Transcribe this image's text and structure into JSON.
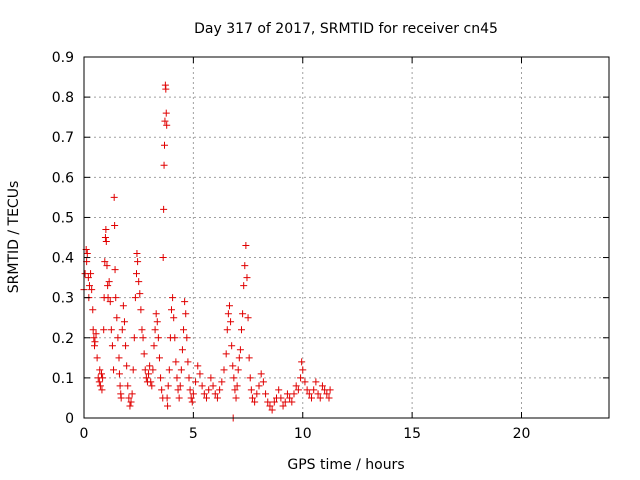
{
  "chart_data": {
    "type": "scatter",
    "title": "Day 317 of 2017, SRMTID for receiver cn45",
    "xlabel": "GPS time / hours",
    "ylabel": "SRMTID / TECUs",
    "xlim": [
      0,
      24
    ],
    "ylim": [
      0,
      0.9
    ],
    "xticks": [
      "0",
      "5",
      "10",
      "15",
      "20"
    ],
    "yticks": [
      "0",
      "0.1",
      "0.2",
      "0.3",
      "0.4",
      "0.5",
      "0.6",
      "0.7",
      "0.8",
      "0.9"
    ],
    "grid": true,
    "marker": "+",
    "color": "#e00000",
    "series": [
      {
        "points": [
          [
            0.0,
            0.32
          ],
          [
            0.05,
            0.36
          ],
          [
            0.1,
            0.42
          ],
          [
            0.12,
            0.39
          ],
          [
            0.15,
            0.41
          ],
          [
            0.2,
            0.35
          ],
          [
            0.22,
            0.3
          ],
          [
            0.25,
            0.33
          ],
          [
            0.3,
            0.36
          ],
          [
            0.35,
            0.32
          ],
          [
            0.4,
            0.27
          ],
          [
            0.42,
            0.22
          ],
          [
            0.45,
            0.2
          ],
          [
            0.48,
            0.18
          ],
          [
            0.5,
            0.19
          ],
          [
            0.55,
            0.21
          ],
          [
            0.6,
            0.15
          ],
          [
            0.65,
            0.1
          ],
          [
            0.7,
            0.09
          ],
          [
            0.72,
            0.12
          ],
          [
            0.75,
            0.08
          ],
          [
            0.8,
            0.11
          ],
          [
            0.82,
            0.07
          ],
          [
            0.85,
            0.1
          ],
          [
            0.9,
            0.22
          ],
          [
            0.92,
            0.3
          ],
          [
            0.95,
            0.39
          ],
          [
            0.98,
            0.45
          ],
          [
            1.0,
            0.47
          ],
          [
            1.02,
            0.44
          ],
          [
            1.05,
            0.38
          ],
          [
            1.08,
            0.33
          ],
          [
            1.1,
            0.3
          ],
          [
            1.15,
            0.34
          ],
          [
            1.2,
            0.29
          ],
          [
            1.25,
            0.22
          ],
          [
            1.3,
            0.18
          ],
          [
            1.35,
            0.12
          ],
          [
            1.38,
            0.55
          ],
          [
            1.4,
            0.48
          ],
          [
            1.42,
            0.37
          ],
          [
            1.45,
            0.3
          ],
          [
            1.5,
            0.25
          ],
          [
            1.55,
            0.2
          ],
          [
            1.6,
            0.15
          ],
          [
            1.62,
            0.11
          ],
          [
            1.65,
            0.08
          ],
          [
            1.68,
            0.06
          ],
          [
            1.7,
            0.05
          ],
          [
            1.75,
            0.22
          ],
          [
            1.8,
            0.28
          ],
          [
            1.85,
            0.24
          ],
          [
            1.9,
            0.18
          ],
          [
            1.95,
            0.13
          ],
          [
            2.0,
            0.08
          ],
          [
            2.05,
            0.05
          ],
          [
            2.1,
            0.03
          ],
          [
            2.15,
            0.04
          ],
          [
            2.2,
            0.06
          ],
          [
            2.25,
            0.12
          ],
          [
            2.3,
            0.2
          ],
          [
            2.35,
            0.3
          ],
          [
            2.4,
            0.36
          ],
          [
            2.42,
            0.41
          ],
          [
            2.45,
            0.39
          ],
          [
            2.5,
            0.34
          ],
          [
            2.55,
            0.31
          ],
          [
            2.6,
            0.27
          ],
          [
            2.65,
            0.22
          ],
          [
            2.7,
            0.2
          ],
          [
            2.75,
            0.16
          ],
          [
            2.8,
            0.12
          ],
          [
            2.85,
            0.1
          ],
          [
            2.9,
            0.09
          ],
          [
            2.95,
            0.11
          ],
          [
            3.0,
            0.13
          ],
          [
            3.05,
            0.09
          ],
          [
            3.1,
            0.08
          ],
          [
            3.15,
            0.12
          ],
          [
            3.2,
            0.18
          ],
          [
            3.25,
            0.22
          ],
          [
            3.3,
            0.26
          ],
          [
            3.35,
            0.24
          ],
          [
            3.4,
            0.2
          ],
          [
            3.45,
            0.15
          ],
          [
            3.5,
            0.1
          ],
          [
            3.55,
            0.07
          ],
          [
            3.6,
            0.05
          ],
          [
            3.62,
            0.4
          ],
          [
            3.64,
            0.52
          ],
          [
            3.66,
            0.63
          ],
          [
            3.68,
            0.68
          ],
          [
            3.7,
            0.74
          ],
          [
            3.72,
            0.83
          ],
          [
            3.74,
            0.82
          ],
          [
            3.76,
            0.76
          ],
          [
            3.78,
            0.73
          ],
          [
            3.8,
            0.05
          ],
          [
            3.82,
            0.03
          ],
          [
            3.85,
            0.08
          ],
          [
            3.9,
            0.12
          ],
          [
            3.95,
            0.2
          ],
          [
            4.0,
            0.27
          ],
          [
            4.05,
            0.3
          ],
          [
            4.1,
            0.25
          ],
          [
            4.15,
            0.2
          ],
          [
            4.2,
            0.14
          ],
          [
            4.25,
            0.1
          ],
          [
            4.3,
            0.07
          ],
          [
            4.35,
            0.05
          ],
          [
            4.4,
            0.08
          ],
          [
            4.45,
            0.12
          ],
          [
            4.5,
            0.17
          ],
          [
            4.55,
            0.22
          ],
          [
            4.6,
            0.29
          ],
          [
            4.65,
            0.26
          ],
          [
            4.7,
            0.2
          ],
          [
            4.75,
            0.14
          ],
          [
            4.8,
            0.1
          ],
          [
            4.85,
            0.07
          ],
          [
            4.9,
            0.05
          ],
          [
            4.95,
            0.04
          ],
          [
            5.0,
            0.06
          ],
          [
            5.1,
            0.09
          ],
          [
            5.2,
            0.13
          ],
          [
            5.3,
            0.11
          ],
          [
            5.4,
            0.08
          ],
          [
            5.5,
            0.06
          ],
          [
            5.6,
            0.05
          ],
          [
            5.7,
            0.07
          ],
          [
            5.8,
            0.1
          ],
          [
            5.9,
            0.08
          ],
          [
            6.0,
            0.06
          ],
          [
            6.1,
            0.05
          ],
          [
            6.2,
            0.07
          ],
          [
            6.3,
            0.09
          ],
          [
            6.4,
            0.12
          ],
          [
            6.5,
            0.16
          ],
          [
            6.55,
            0.22
          ],
          [
            6.6,
            0.26
          ],
          [
            6.65,
            0.28
          ],
          [
            6.7,
            0.24
          ],
          [
            6.75,
            0.18
          ],
          [
            6.8,
            0.13
          ],
          [
            6.82,
            0.0
          ],
          [
            6.85,
            0.1
          ],
          [
            6.9,
            0.07
          ],
          [
            6.95,
            0.05
          ],
          [
            7.0,
            0.08
          ],
          [
            7.05,
            0.12
          ],
          [
            7.1,
            0.15
          ],
          [
            7.15,
            0.17
          ],
          [
            7.2,
            0.22
          ],
          [
            7.25,
            0.26
          ],
          [
            7.3,
            0.33
          ],
          [
            7.35,
            0.38
          ],
          [
            7.4,
            0.43
          ],
          [
            7.45,
            0.35
          ],
          [
            7.5,
            0.25
          ],
          [
            7.55,
            0.15
          ],
          [
            7.6,
            0.1
          ],
          [
            7.65,
            0.07
          ],
          [
            7.7,
            0.05
          ],
          [
            7.8,
            0.04
          ],
          [
            7.9,
            0.06
          ],
          [
            8.0,
            0.08
          ],
          [
            8.1,
            0.11
          ],
          [
            8.2,
            0.09
          ],
          [
            8.3,
            0.06
          ],
          [
            8.4,
            0.04
          ],
          [
            8.5,
            0.03
          ],
          [
            8.6,
            0.02
          ],
          [
            8.7,
            0.04
          ],
          [
            8.8,
            0.05
          ],
          [
            8.9,
            0.07
          ],
          [
            9.0,
            0.05
          ],
          [
            9.1,
            0.03
          ],
          [
            9.2,
            0.04
          ],
          [
            9.3,
            0.06
          ],
          [
            9.4,
            0.05
          ],
          [
            9.5,
            0.04
          ],
          [
            9.6,
            0.06
          ],
          [
            9.7,
            0.08
          ],
          [
            9.8,
            0.07
          ],
          [
            9.9,
            0.1
          ],
          [
            9.95,
            0.14
          ],
          [
            10.0,
            0.12
          ],
          [
            10.1,
            0.09
          ],
          [
            10.2,
            0.07
          ],
          [
            10.3,
            0.06
          ],
          [
            10.4,
            0.05
          ],
          [
            10.5,
            0.07
          ],
          [
            10.6,
            0.09
          ],
          [
            10.7,
            0.06
          ],
          [
            10.8,
            0.05
          ],
          [
            10.9,
            0.08
          ],
          [
            11.0,
            0.07
          ],
          [
            11.1,
            0.06
          ],
          [
            11.2,
            0.05
          ],
          [
            11.25,
            0.07
          ]
        ]
      }
    ]
  }
}
